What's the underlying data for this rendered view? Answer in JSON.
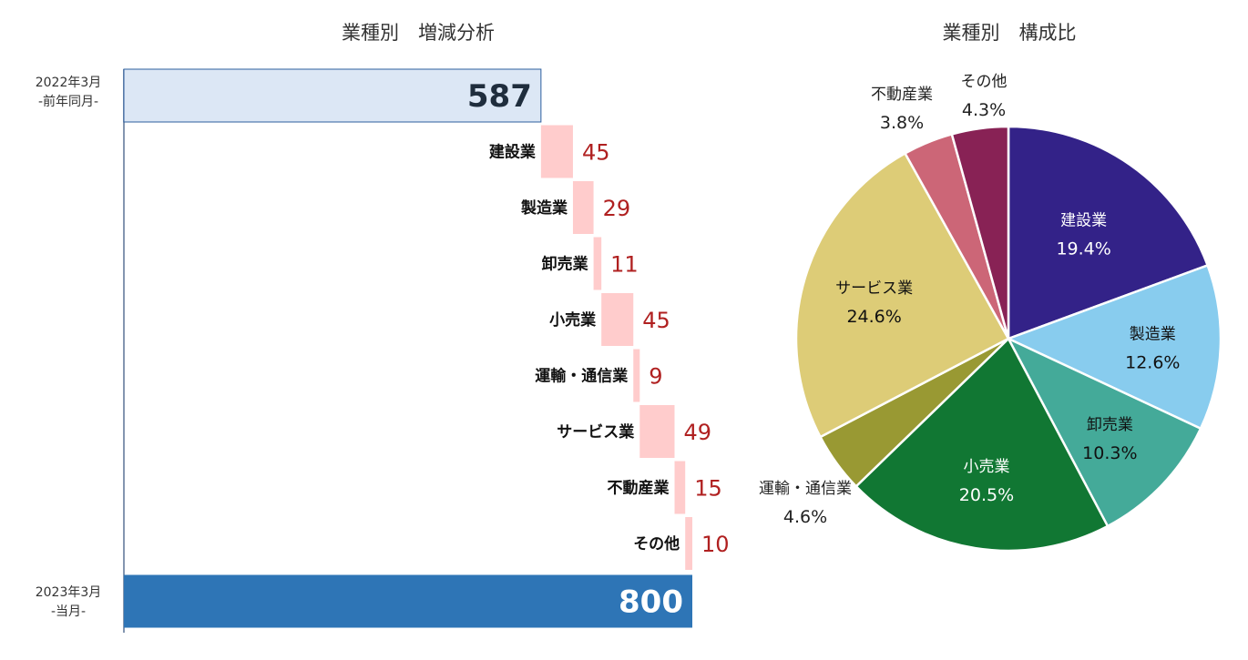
{
  "waterfall": {
    "title": "業種別　増減分析",
    "start": {
      "period": "2022年3月",
      "subperiod": "-前年同月-",
      "value": 587
    },
    "end": {
      "period": "2023年3月",
      "subperiod": "-当月-",
      "value": 800
    },
    "colors": {
      "start": "#dce7f5",
      "start_border": "#2e5f9e",
      "end": "#2e75b6",
      "step": "#ffcccc",
      "delta_text": "#b02020",
      "axis": "#8496b0"
    }
  },
  "pie": {
    "title": "業種別　構成比",
    "colors": [
      "#332288",
      "#88ccee",
      "#44aa99",
      "#117733",
      "#999933",
      "#ddcc77",
      "#cc6677",
      "#882255"
    ]
  },
  "chart_data": [
    {
      "type": "bar",
      "subtype": "waterfall",
      "title": "業種別　増減分析",
      "categories": [
        "2022年3月 -前年同月-",
        "建設業",
        "製造業",
        "卸売業",
        "小売業",
        "運輸・通信業",
        "サービス業",
        "不動産業",
        "その他",
        "2023年3月 -当月-"
      ],
      "values": [
        587,
        45,
        29,
        11,
        45,
        9,
        49,
        15,
        10,
        800
      ],
      "steps": [
        {
          "label": "建設業",
          "value": 45
        },
        {
          "label": "製造業",
          "value": 29
        },
        {
          "label": "卸売業",
          "value": 11
        },
        {
          "label": "小売業",
          "value": 45
        },
        {
          "label": "運輸・通信業",
          "value": 9
        },
        {
          "label": "サービス業",
          "value": 49
        },
        {
          "label": "不動産業",
          "value": 15
        },
        {
          "label": "その他",
          "value": 10
        }
      ],
      "xlim": [
        0,
        800
      ]
    },
    {
      "type": "pie",
      "title": "業種別　構成比",
      "slices": [
        {
          "label": "建設業",
          "value": 19.4,
          "text": "19.4%"
        },
        {
          "label": "製造業",
          "value": 12.6,
          "text": "12.6%"
        },
        {
          "label": "卸売業",
          "value": 10.3,
          "text": "10.3%"
        },
        {
          "label": "小売業",
          "value": 20.5,
          "text": "20.5%"
        },
        {
          "label": "運輸・通信業",
          "value": 4.6,
          "text": "4.6%"
        },
        {
          "label": "サービス業",
          "value": 24.6,
          "text": "24.6%"
        },
        {
          "label": "不動産業",
          "value": 3.8,
          "text": "3.8%"
        },
        {
          "label": "その他",
          "value": 4.3,
          "text": "4.3%"
        }
      ],
      "start_angle": "12 o'clock, clockwise"
    }
  ]
}
